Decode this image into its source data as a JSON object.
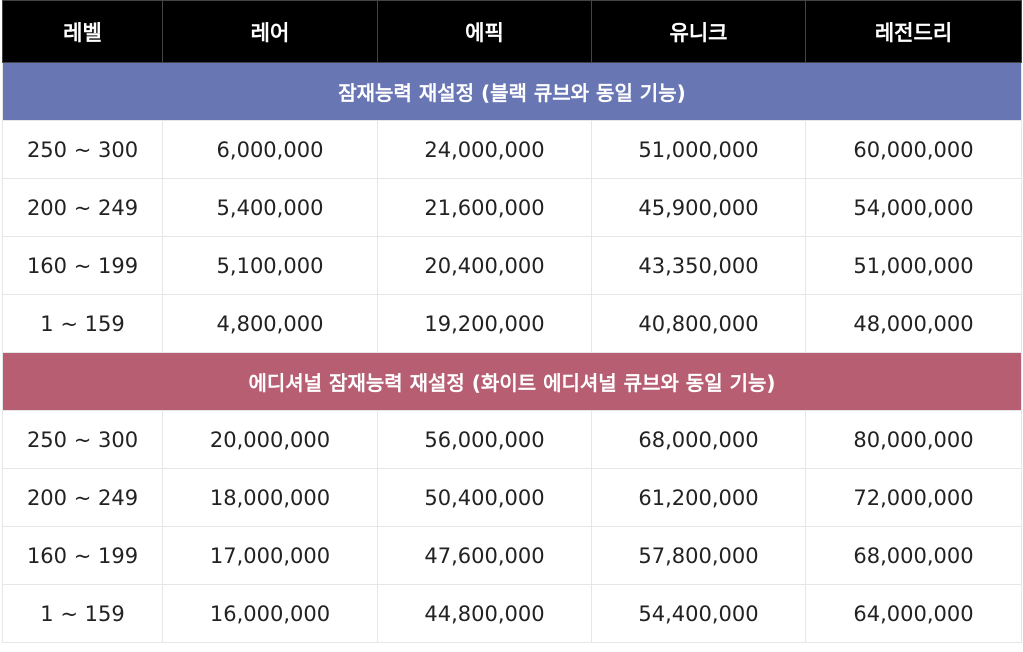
{
  "header": {
    "columns": [
      "레벨",
      "레어",
      "에픽",
      "유니크",
      "레전드리"
    ]
  },
  "sections": [
    {
      "title": "잠재능력 재설정 (블랙 큐브와 동일 기능)",
      "rows": [
        [
          "250 ~ 300",
          "6,000,000",
          "24,000,000",
          "51,000,000",
          "60,000,000"
        ],
        [
          "200 ~ 249",
          "5,400,000",
          "21,600,000",
          "45,900,000",
          "54,000,000"
        ],
        [
          "160 ~ 199",
          "5,100,000",
          "20,400,000",
          "43,350,000",
          "51,000,000"
        ],
        [
          "1 ~ 159",
          "4,800,000",
          "19,200,000",
          "40,800,000",
          "48,000,000"
        ]
      ]
    },
    {
      "title": "에디셔널 잠재능력 재설정 (화이트 에디셔널 큐브와 동일 기능)",
      "rows": [
        [
          "250 ~ 300",
          "20,000,000",
          "56,000,000",
          "68,000,000",
          "80,000,000"
        ],
        [
          "200 ~ 249",
          "18,000,000",
          "50,400,000",
          "61,200,000",
          "72,000,000"
        ],
        [
          "160 ~ 199",
          "17,000,000",
          "47,600,000",
          "57,800,000",
          "68,000,000"
        ],
        [
          "1 ~ 159",
          "16,000,000",
          "44,800,000",
          "54,400,000",
          "64,000,000"
        ]
      ]
    }
  ]
}
